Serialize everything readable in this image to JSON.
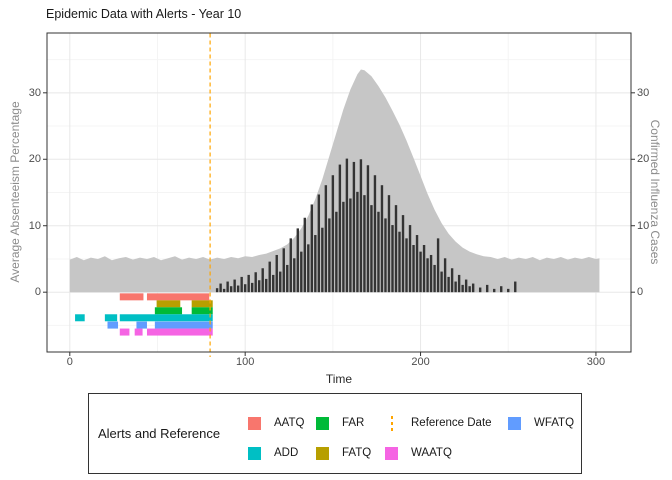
{
  "title": "Epidemic Data with Alerts - Year 10",
  "axis_titles": {
    "left": "Average Absenteeism Percentage",
    "right": "Confirmed Influenza Cases",
    "bottom": "Time"
  },
  "legend": {
    "title": "Alerts and Reference",
    "entries": [
      {
        "label": "AATQ",
        "color": "#F8766D",
        "type": "swatch",
        "col": 0,
        "row": 0
      },
      {
        "label": "ADD",
        "color": "#00BFC4",
        "type": "swatch",
        "col": 0,
        "row": 1
      },
      {
        "label": "FAR",
        "color": "#00BA38",
        "type": "swatch",
        "col": 1,
        "row": 0
      },
      {
        "label": "FATQ",
        "color": "#B79F00",
        "type": "swatch",
        "col": 1,
        "row": 1
      },
      {
        "label": "Reference Date",
        "color": "#FFA500",
        "type": "dashed-line",
        "col": 2,
        "row": 0
      },
      {
        "label": "WAATQ",
        "color": "#F564E3",
        "type": "swatch",
        "col": 2,
        "row": 1
      },
      {
        "label": "WFATQ",
        "color": "#619CFF",
        "type": "swatch",
        "col": 3,
        "row": 0
      }
    ]
  },
  "chart_data": {
    "type": "composite",
    "title": "Epidemic Data with Alerts - Year 10",
    "xlabel": "Time",
    "x_axis": {
      "ticks": [
        0,
        100,
        200,
        300
      ],
      "minor_ticks": [
        50,
        150,
        250
      ],
      "range": [
        -13,
        320
      ]
    },
    "y_axis_left": {
      "label": "Average Absenteeism Percentage",
      "ticks": [
        0,
        10,
        20,
        30
      ],
      "minor_ticks": [
        -5,
        5,
        15,
        25,
        35
      ],
      "range": [
        -9,
        39
      ]
    },
    "y_axis_right": {
      "label": "Confirmed Influenza Cases",
      "ticks": [
        0,
        10,
        20,
        30
      ]
    },
    "grid": {
      "major_color": "#E8E8E8",
      "minor_color": "#F4F4F4",
      "panel_border": "#333333"
    },
    "reference_date": 80,
    "series": [
      {
        "name": "absenteeism_pct",
        "type": "area",
        "color": "#C6C6C6",
        "points": [
          [
            0,
            4.9
          ],
          [
            4,
            5.3
          ],
          [
            8,
            4.8
          ],
          [
            12,
            5.2
          ],
          [
            16,
            5.0
          ],
          [
            20,
            5.4
          ],
          [
            24,
            4.8
          ],
          [
            28,
            5.1
          ],
          [
            32,
            5.3
          ],
          [
            36,
            4.9
          ],
          [
            40,
            5.2
          ],
          [
            44,
            5.0
          ],
          [
            48,
            5.3
          ],
          [
            52,
            4.8
          ],
          [
            56,
            5.1
          ],
          [
            60,
            5.4
          ],
          [
            64,
            4.9
          ],
          [
            68,
            5.2
          ],
          [
            72,
            5.0
          ],
          [
            76,
            5.3
          ],
          [
            80,
            4.9
          ],
          [
            84,
            5.2
          ],
          [
            88,
            5.0
          ],
          [
            92,
            5.3
          ],
          [
            96,
            5.1
          ],
          [
            100,
            5.4
          ],
          [
            104,
            5.3
          ],
          [
            108,
            5.6
          ],
          [
            112,
            5.8
          ],
          [
            116,
            6.2
          ],
          [
            120,
            6.6
          ],
          [
            124,
            7.2
          ],
          [
            128,
            8.2
          ],
          [
            132,
            9.6
          ],
          [
            136,
            11.5
          ],
          [
            140,
            14.0
          ],
          [
            144,
            17.0
          ],
          [
            148,
            20.5
          ],
          [
            152,
            24.0
          ],
          [
            156,
            27.5
          ],
          [
            160,
            30.5
          ],
          [
            164,
            32.8
          ],
          [
            166,
            33.5
          ],
          [
            168,
            33.4
          ],
          [
            172,
            32.5
          ],
          [
            176,
            31.0
          ],
          [
            180,
            29.3
          ],
          [
            184,
            27.3
          ],
          [
            188,
            25.2
          ],
          [
            192,
            22.8
          ],
          [
            196,
            20.2
          ],
          [
            200,
            17.5
          ],
          [
            204,
            14.8
          ],
          [
            208,
            12.4
          ],
          [
            212,
            10.4
          ],
          [
            216,
            8.8
          ],
          [
            220,
            7.6
          ],
          [
            224,
            6.7
          ],
          [
            228,
            6.1
          ],
          [
            232,
            5.7
          ],
          [
            236,
            5.4
          ],
          [
            240,
            5.3
          ],
          [
            244,
            5.0
          ],
          [
            248,
            5.3
          ],
          [
            252,
            4.9
          ],
          [
            256,
            5.2
          ],
          [
            260,
            5.0
          ],
          [
            264,
            5.3
          ],
          [
            268,
            4.8
          ],
          [
            272,
            5.2
          ],
          [
            276,
            5.0
          ],
          [
            280,
            5.3
          ],
          [
            284,
            4.9
          ],
          [
            288,
            5.2
          ],
          [
            292,
            5.0
          ],
          [
            296,
            5.3
          ],
          [
            300,
            5.0
          ],
          [
            302,
            5.1
          ]
        ]
      },
      {
        "name": "confirmed_influenza_cases",
        "type": "bar",
        "color": "#343434",
        "points": [
          [
            84,
            0.6
          ],
          [
            86,
            1.3
          ],
          [
            88,
            0.5
          ],
          [
            90,
            1.6
          ],
          [
            92,
            0.9
          ],
          [
            94,
            1.9
          ],
          [
            96,
            1.0
          ],
          [
            98,
            2.3
          ],
          [
            100,
            1.2
          ],
          [
            102,
            2.6
          ],
          [
            104,
            1.4
          ],
          [
            106,
            3.0
          ],
          [
            108,
            1.8
          ],
          [
            110,
            3.6
          ],
          [
            112,
            2.0
          ],
          [
            114,
            4.6
          ],
          [
            116,
            2.6
          ],
          [
            118,
            5.6
          ],
          [
            120,
            3.1
          ],
          [
            122,
            6.6
          ],
          [
            124,
            4.1
          ],
          [
            126,
            8.1
          ],
          [
            128,
            5.1
          ],
          [
            130,
            9.6
          ],
          [
            132,
            6.1
          ],
          [
            134,
            11.2
          ],
          [
            136,
            7.2
          ],
          [
            138,
            13.2
          ],
          [
            140,
            8.6
          ],
          [
            142,
            14.7
          ],
          [
            144,
            9.7
          ],
          [
            146,
            16.1
          ],
          [
            148,
            11.1
          ],
          [
            150,
            17.6
          ],
          [
            152,
            12.1
          ],
          [
            154,
            19.2
          ],
          [
            156,
            13.6
          ],
          [
            158,
            20.1
          ],
          [
            160,
            14.1
          ],
          [
            162,
            19.6
          ],
          [
            164,
            15.1
          ],
          [
            166,
            20.0
          ],
          [
            168,
            14.6
          ],
          [
            170,
            19.1
          ],
          [
            172,
            13.1
          ],
          [
            174,
            17.6
          ],
          [
            176,
            12.1
          ],
          [
            178,
            16.1
          ],
          [
            180,
            11.1
          ],
          [
            182,
            14.6
          ],
          [
            184,
            10.1
          ],
          [
            186,
            13.1
          ],
          [
            188,
            9.1
          ],
          [
            190,
            11.6
          ],
          [
            192,
            8.1
          ],
          [
            194,
            10.1
          ],
          [
            196,
            7.1
          ],
          [
            198,
            8.6
          ],
          [
            200,
            6.1
          ],
          [
            202,
            7.1
          ],
          [
            204,
            5.1
          ],
          [
            206,
            5.6
          ],
          [
            208,
            4.1
          ],
          [
            210,
            8.1
          ],
          [
            212,
            3.1
          ],
          [
            214,
            5.1
          ],
          [
            216,
            2.3
          ],
          [
            218,
            3.6
          ],
          [
            220,
            1.6
          ],
          [
            222,
            2.6
          ],
          [
            224,
            1.1
          ],
          [
            226,
            1.9
          ],
          [
            228,
            0.9
          ],
          [
            230,
            1.3
          ],
          [
            234,
            0.7
          ],
          [
            238,
            1.1
          ],
          [
            242,
            0.5
          ],
          [
            246,
            0.9
          ],
          [
            250,
            0.5
          ],
          [
            254,
            1.6
          ]
        ]
      }
    ],
    "alerts": [
      {
        "name": "AATQ",
        "color": "#F8766D",
        "level": -0.7,
        "segments": [
          [
            28.5,
            42
          ],
          [
            44,
            79.5
          ]
        ]
      },
      {
        "name": "FATQ",
        "color": "#B79F00",
        "level": -1.75,
        "segments": [
          [
            49.5,
            63
          ],
          [
            69.5,
            81.5
          ]
        ]
      },
      {
        "name": "FAR",
        "color": "#00BA38",
        "level": -2.8,
        "segments": [
          [
            48.5,
            64
          ],
          [
            69.5,
            81.5
          ]
        ]
      },
      {
        "name": "ADD",
        "color": "#00BFC4",
        "level": -3.85,
        "segments": [
          [
            3,
            8.5
          ],
          [
            20,
            27
          ],
          [
            28.5,
            81.5
          ]
        ]
      },
      {
        "name": "WFATQ",
        "color": "#619CFF",
        "level": -4.95,
        "segments": [
          [
            21.5,
            27.5
          ],
          [
            38,
            44
          ],
          [
            48.5,
            81.5
          ]
        ]
      },
      {
        "name": "WAATQ",
        "color": "#F564E3",
        "level": -6.0,
        "segments": [
          [
            28.5,
            34
          ],
          [
            37,
            41.5
          ],
          [
            44,
            81.5
          ]
        ]
      }
    ],
    "reference_line_color": "#FFA500"
  }
}
